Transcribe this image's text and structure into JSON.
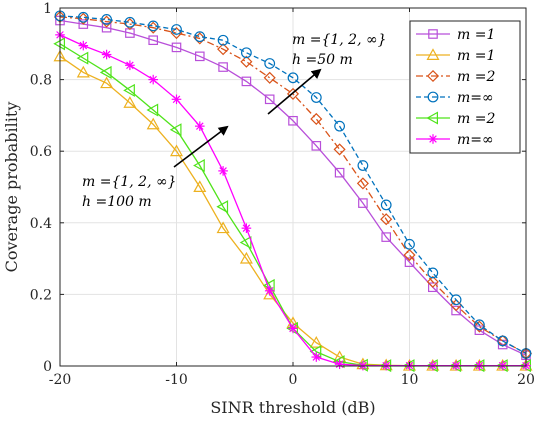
{
  "chart_data": {
    "type": "line",
    "xlabel": "SINR threshold (dB)",
    "ylabel": "Coverage probability",
    "xlim": [
      -20,
      20
    ],
    "ylim": [
      0,
      1
    ],
    "xticks": [
      -20,
      -10,
      0,
      10,
      20
    ],
    "xtick_labels": [
      "-20",
      "-10",
      "0",
      "10",
      "20"
    ],
    "yticks": [
      0,
      0.2,
      0.4,
      0.6,
      0.8,
      1
    ],
    "ytick_labels": [
      "0",
      "0.2",
      "0.4",
      "0.6",
      "0.8",
      "1"
    ],
    "grid": true,
    "legend_position": "top-right",
    "x": [
      -20,
      -18,
      -16,
      -14,
      -12,
      -10,
      -8,
      -6,
      -4,
      -2,
      0,
      2,
      4,
      6,
      8,
      10,
      12,
      14,
      16,
      18,
      20
    ],
    "series": [
      {
        "name": "m =1",
        "color": "#B84FD9",
        "marker": "square",
        "dash": "solid",
        "values": [
          0.965,
          0.955,
          0.945,
          0.93,
          0.91,
          0.89,
          0.865,
          0.835,
          0.795,
          0.745,
          0.685,
          0.615,
          0.54,
          0.455,
          0.36,
          0.29,
          0.22,
          0.155,
          0.1,
          0.06,
          0.03
        ]
      },
      {
        "name": "m =1",
        "color": "#EDB120",
        "marker": "triangle-up",
        "dash": "solid",
        "values": [
          0.865,
          0.82,
          0.79,
          0.735,
          0.675,
          0.6,
          0.5,
          0.385,
          0.3,
          0.2,
          0.12,
          0.065,
          0.025,
          0.005,
          0.002,
          0.001,
          0.001,
          0.001,
          0.001,
          0.001,
          0.001
        ]
      },
      {
        "name": "m =2",
        "color": "#D95319",
        "marker": "diamond",
        "dash": "dashdot",
        "values": [
          0.975,
          0.97,
          0.962,
          0.955,
          0.945,
          0.93,
          0.915,
          0.885,
          0.85,
          0.805,
          0.76,
          0.69,
          0.605,
          0.51,
          0.41,
          0.31,
          0.235,
          0.17,
          0.11,
          0.07,
          0.035
        ]
      },
      {
        "name": "m=∞",
        "color": "#0072BD",
        "marker": "circle",
        "dash": "dashed",
        "values": [
          0.978,
          0.974,
          0.968,
          0.96,
          0.95,
          0.94,
          0.92,
          0.91,
          0.875,
          0.845,
          0.805,
          0.75,
          0.67,
          0.56,
          0.45,
          0.34,
          0.26,
          0.185,
          0.115,
          0.07,
          0.035
        ]
      },
      {
        "name": "m =2",
        "color": "#4FE31A",
        "marker": "triangle-left",
        "dash": "solid",
        "values": [
          0.9,
          0.86,
          0.82,
          0.77,
          0.715,
          0.66,
          0.56,
          0.445,
          0.345,
          0.225,
          0.105,
          0.04,
          0.012,
          0.002,
          0.001,
          0.001,
          0.001,
          0.001,
          0.001,
          0.001,
          0.001
        ]
      },
      {
        "name": "m=∞",
        "color": "#FF00FF",
        "marker": "asterisk",
        "dash": "solid",
        "values": [
          0.925,
          0.895,
          0.87,
          0.84,
          0.8,
          0.745,
          0.67,
          0.545,
          0.385,
          0.21,
          0.105,
          0.025,
          0.005,
          0.001,
          0.001,
          0.001,
          0.001,
          0.001,
          0.001,
          0.001,
          0.001
        ]
      }
    ],
    "annotations": [
      {
        "line1": "m ={1, 2, ∞}",
        "line2": "h =50 m"
      },
      {
        "line1": "m ={1, 2, ∞}",
        "line2": "h =100 m"
      }
    ]
  }
}
